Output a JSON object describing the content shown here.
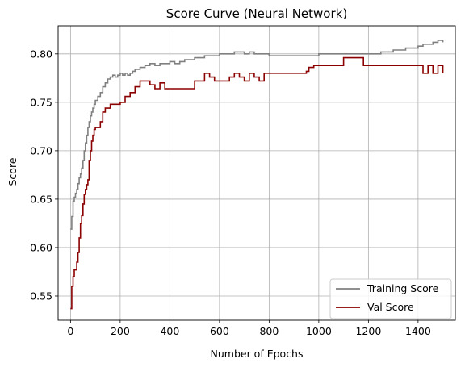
{
  "chart_data": {
    "type": "line",
    "title": "Score Curve (Neural Network)",
    "xlabel": "Number of Epochs",
    "ylabel": "Score",
    "xlim": [
      -50,
      1550
    ],
    "ylim": [
      0.525,
      0.829
    ],
    "xticks": [
      0,
      200,
      400,
      600,
      800,
      1000,
      1200,
      1400
    ],
    "yticks": [
      0.55,
      0.6,
      0.65,
      0.7,
      0.75,
      0.8
    ],
    "ytick_labels": [
      "0.55",
      "0.60",
      "0.65",
      "0.70",
      "0.75",
      "0.80"
    ],
    "grid": true,
    "legend_position": "lower-right",
    "series": [
      {
        "name": "Training Score",
        "color": "#808080",
        "x": [
          0,
          5,
          10,
          15,
          20,
          25,
          30,
          35,
          40,
          45,
          50,
          55,
          60,
          65,
          70,
          75,
          80,
          85,
          90,
          95,
          100,
          110,
          120,
          130,
          140,
          150,
          160,
          170,
          180,
          190,
          200,
          210,
          220,
          230,
          240,
          250,
          260,
          280,
          300,
          320,
          340,
          360,
          380,
          400,
          420,
          440,
          460,
          480,
          500,
          520,
          540,
          560,
          580,
          600,
          620,
          640,
          660,
          680,
          700,
          720,
          740,
          760,
          780,
          800,
          850,
          900,
          950,
          1000,
          1050,
          1100,
          1150,
          1200,
          1250,
          1300,
          1350,
          1400,
          1420,
          1440,
          1460,
          1480,
          1500
        ],
        "y": [
          0.619,
          0.632,
          0.648,
          0.652,
          0.656,
          0.66,
          0.666,
          0.672,
          0.676,
          0.682,
          0.69,
          0.7,
          0.708,
          0.716,
          0.724,
          0.73,
          0.736,
          0.74,
          0.744,
          0.748,
          0.752,
          0.756,
          0.76,
          0.766,
          0.77,
          0.774,
          0.776,
          0.778,
          0.776,
          0.778,
          0.78,
          0.778,
          0.78,
          0.778,
          0.78,
          0.782,
          0.784,
          0.786,
          0.788,
          0.79,
          0.788,
          0.79,
          0.79,
          0.792,
          0.79,
          0.792,
          0.794,
          0.794,
          0.796,
          0.796,
          0.798,
          0.798,
          0.798,
          0.8,
          0.8,
          0.8,
          0.802,
          0.802,
          0.8,
          0.802,
          0.8,
          0.8,
          0.8,
          0.798,
          0.798,
          0.798,
          0.798,
          0.8,
          0.8,
          0.8,
          0.8,
          0.8,
          0.802,
          0.804,
          0.806,
          0.808,
          0.81,
          0.81,
          0.812,
          0.814,
          0.812
        ]
      },
      {
        "name": "Val Score",
        "color": "#8b0000",
        "x": [
          0,
          5,
          10,
          15,
          20,
          25,
          30,
          35,
          40,
          45,
          50,
          55,
          60,
          65,
          70,
          75,
          80,
          85,
          90,
          95,
          100,
          110,
          120,
          130,
          140,
          160,
          180,
          200,
          220,
          240,
          260,
          280,
          300,
          320,
          340,
          360,
          380,
          400,
          450,
          500,
          520,
          540,
          560,
          580,
          600,
          620,
          640,
          660,
          680,
          700,
          720,
          740,
          760,
          780,
          800,
          850,
          900,
          950,
          960,
          980,
          1000,
          1050,
          1100,
          1150,
          1180,
          1200,
          1250,
          1300,
          1350,
          1400,
          1420,
          1440,
          1460,
          1480,
          1500
        ],
        "y": [
          0.537,
          0.56,
          0.57,
          0.577,
          0.577,
          0.585,
          0.595,
          0.61,
          0.625,
          0.633,
          0.645,
          0.655,
          0.66,
          0.665,
          0.67,
          0.69,
          0.7,
          0.71,
          0.716,
          0.722,
          0.724,
          0.724,
          0.73,
          0.74,
          0.744,
          0.748,
          0.748,
          0.75,
          0.756,
          0.76,
          0.766,
          0.772,
          0.772,
          0.768,
          0.764,
          0.77,
          0.764,
          0.764,
          0.764,
          0.772,
          0.772,
          0.78,
          0.776,
          0.772,
          0.772,
          0.772,
          0.776,
          0.78,
          0.776,
          0.772,
          0.78,
          0.776,
          0.772,
          0.78,
          0.78,
          0.78,
          0.78,
          0.782,
          0.786,
          0.788,
          0.788,
          0.788,
          0.796,
          0.796,
          0.788,
          0.788,
          0.788,
          0.788,
          0.788,
          0.788,
          0.78,
          0.788,
          0.78,
          0.788,
          0.78
        ]
      }
    ]
  }
}
